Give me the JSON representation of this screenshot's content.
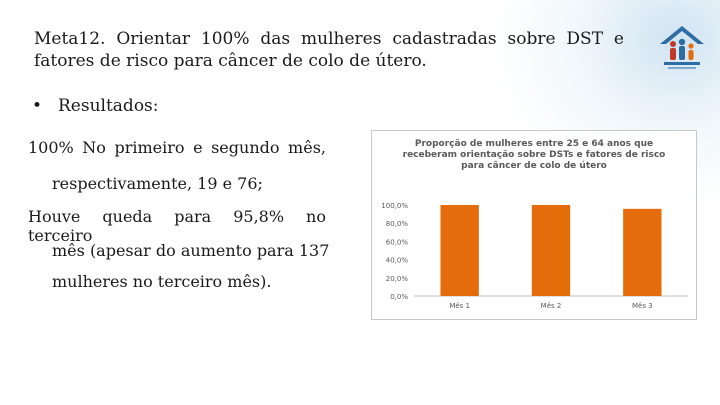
{
  "slide": {
    "title": "Meta12. Orientar 100% das mulheres cadastradas sobre DST e fatores de risco para câncer de colo de útero.",
    "bullet": "Resultados:",
    "paragraphs": [
      {
        "first": "100% No primeiro e segundo mês,",
        "rest": [
          "respectivamente, 19 e 76;"
        ]
      },
      {
        "first": "Houve queda para 95,8% no terceiro",
        "rest": [
          "mês (apesar do aumento para 137",
          "mulheres no terceiro mês)."
        ]
      }
    ]
  },
  "logo": {
    "icon": "family-logo-icon",
    "color": "#2e6da4",
    "accent": "#c0392b"
  },
  "chart_data": {
    "type": "bar",
    "title": "Proporção de mulheres entre 25 e 64 anos que receberam orientação sobre DSTs e fatores de risco para câncer de colo de útero",
    "categories": [
      "Mês 1",
      "Mês 2",
      "Mês 3"
    ],
    "values": [
      100,
      100,
      95.8
    ],
    "ylim": [
      0,
      100
    ],
    "yticks": [
      "0,0%",
      "20,0%",
      "40,0%",
      "60,0%",
      "80,0%",
      "100,0%"
    ],
    "bar_color": "#e46c0a",
    "grid": false,
    "legend": "none"
  }
}
